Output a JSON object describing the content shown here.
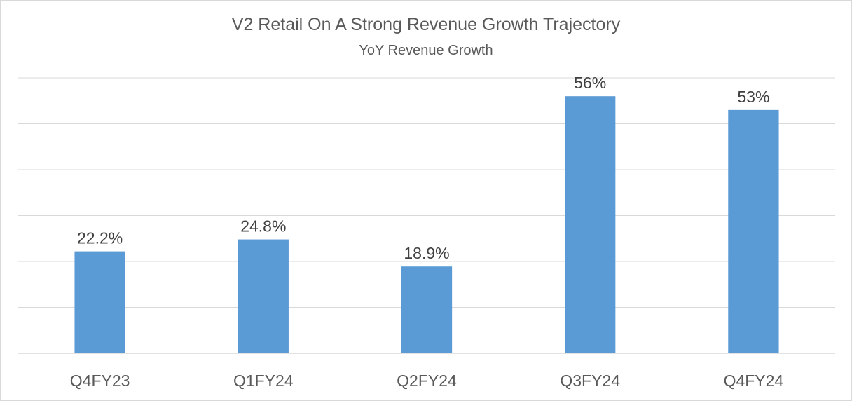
{
  "chart_data": {
    "type": "bar",
    "title": "V2 Retail On A Strong Revenue Growth Trajectory",
    "subtitle": "YoY Revenue Growth",
    "xlabel": "",
    "ylabel": "",
    "categories": [
      "Q4FY23",
      "Q1FY24",
      "Q2FY24",
      "Q3FY24",
      "Q4FY24"
    ],
    "values": [
      22.2,
      24.8,
      18.9,
      56,
      53
    ],
    "value_labels": [
      "22.2%",
      "24.8%",
      "18.9%",
      "56%",
      "53%"
    ],
    "ylim": [
      0,
      60
    ],
    "grid": true,
    "legend": "none",
    "bar_color": "#5b9bd5"
  }
}
